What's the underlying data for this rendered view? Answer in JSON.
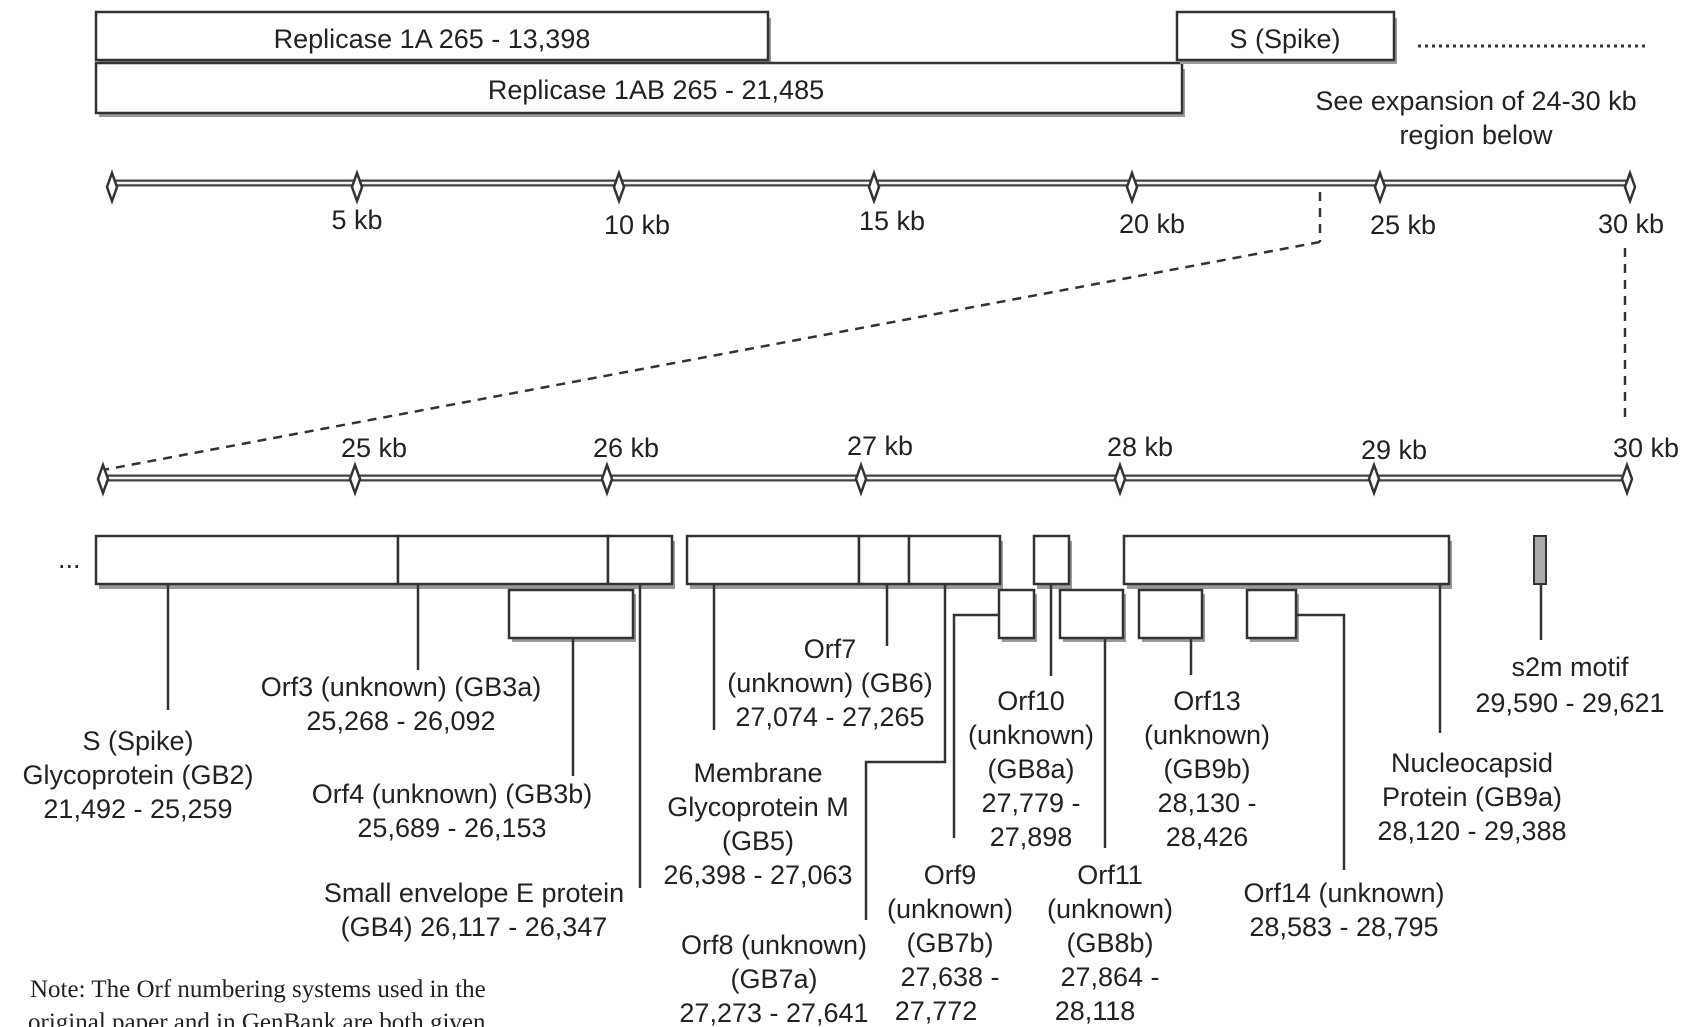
{
  "top_map": {
    "replicase_1a": "Replicase 1A 265 - 13,398",
    "replicase_1ab": "Replicase 1AB 265 - 21,485",
    "spike": "S (Spike)",
    "expansion_note": [
      "See expansion of 24-30 kb",
      "region below"
    ],
    "ticks": [
      "5 kb",
      "10 kb",
      "15 kb",
      "20 kb",
      "25 kb",
      "30 kb"
    ]
  },
  "detail_map": {
    "ellipsis": "...",
    "ticks": [
      "25 kb",
      "26 kb",
      "27 kb",
      "28 kb",
      "29 kb",
      "30 kb"
    ],
    "labels": {
      "spike": [
        "S (Spike)",
        "Glycoprotein (GB2)",
        "21,492 - 25,259"
      ],
      "orf3": [
        "Orf3 (unknown) (GB3a)",
        "25,268 - 26,092"
      ],
      "orf4": [
        "Orf4 (unknown) (GB3b)",
        "25,689 - 26,153"
      ],
      "e_protein": [
        "Small envelope E protein",
        "(GB4) 26,117 - 26,347"
      ],
      "orf7": [
        "Orf7",
        "(unknown) (GB6)",
        "27,074 - 27,265"
      ],
      "membrane": [
        "Membrane",
        "Glycoprotein M",
        "(GB5)",
        "26,398 - 27,063"
      ],
      "orf8": [
        "Orf8 (unknown)",
        "(GB7a)",
        "27,273 - 27,641"
      ],
      "orf9": [
        "Orf9",
        "(unknown)",
        "(GB7b)",
        "27,638 -",
        "27,772"
      ],
      "orf10": [
        "Orf10",
        "(unknown)",
        "(GB8a)",
        "27,779 -",
        "27,898"
      ],
      "orf11": [
        "Orf11",
        "(unknown)",
        "(GB8b)",
        "27,864 -",
        "28,118"
      ],
      "orf13": [
        "Orf13",
        "(unknown)",
        "(GB9b)",
        "28,130 -",
        "28,426"
      ],
      "nucleocapsid": [
        "Nucleocapsid",
        "Protein (GB9a)",
        "28,120 - 29,388"
      ],
      "orf14": [
        "Orf14 (unknown)",
        "28,583 - 28,795"
      ],
      "s2m": [
        "s2m motif",
        "29,590 - 29,621"
      ]
    }
  },
  "footnote": [
    "Note: The Orf numbering systems used in the",
    "original paper and in GenBank are both given"
  ]
}
